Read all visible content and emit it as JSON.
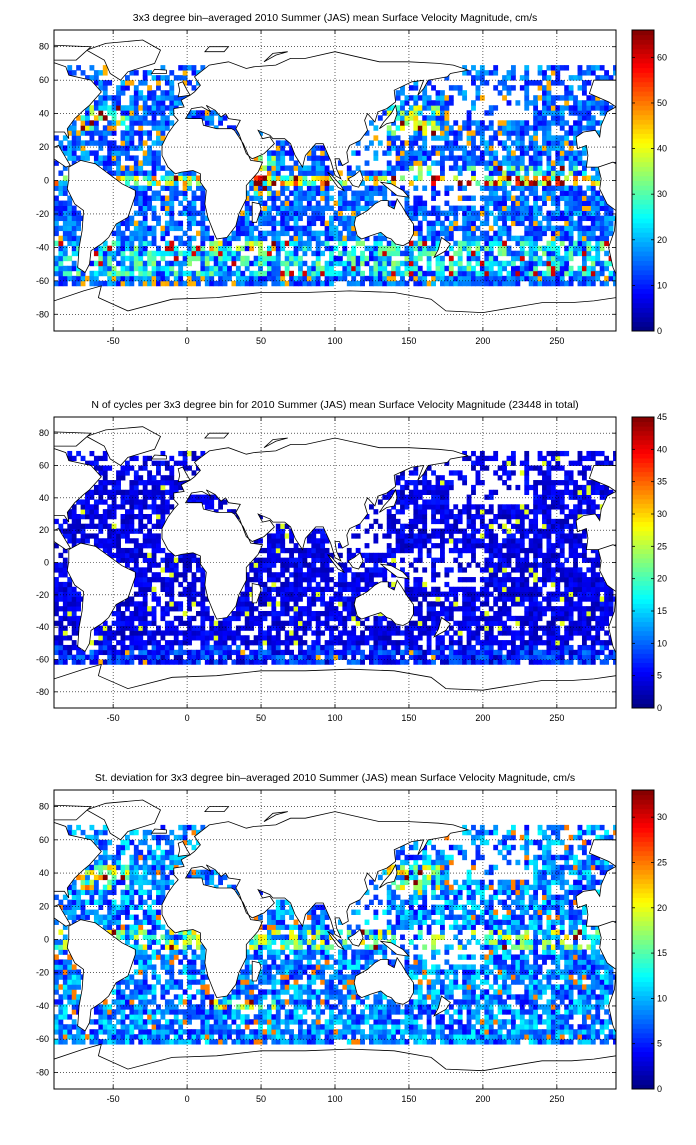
{
  "chart_data": [
    {
      "type": "heatmap",
      "title": "3x3 degree bin–averaged 2010 Summer (JAS) mean Surface Velocity Magnitude, cm/s",
      "xlabel": "",
      "ylabel": "",
      "xlim": [
        -90,
        290
      ],
      "ylim": [
        -90,
        90
      ],
      "xticks": [
        -50,
        0,
        50,
        100,
        150,
        200,
        250
      ],
      "yticks": [
        80,
        60,
        40,
        20,
        0,
        -20,
        -40,
        -60,
        -80
      ],
      "colorbar": {
        "range": [
          0,
          66
        ],
        "ticks": [
          0,
          10,
          20,
          30,
          40,
          50,
          60
        ]
      },
      "colormap": "jet",
      "grid": true,
      "field": "speed"
    },
    {
      "type": "heatmap",
      "title": "N of cycles per 3x3 degree bin for 2010 Summer (JAS) mean Surface Velocity Magnitude (23448 in total)",
      "xlabel": "",
      "ylabel": "",
      "xlim": [
        -90,
        290
      ],
      "ylim": [
        -90,
        90
      ],
      "xticks": [
        -50,
        0,
        50,
        100,
        150,
        200,
        250
      ],
      "yticks": [
        80,
        60,
        40,
        20,
        0,
        -20,
        -40,
        -60,
        -80
      ],
      "colorbar": {
        "range": [
          0,
          45
        ],
        "ticks": [
          0,
          5,
          10,
          15,
          20,
          25,
          30,
          35,
          40,
          45
        ]
      },
      "colormap": "jet",
      "grid": true,
      "field": "count"
    },
    {
      "type": "heatmap",
      "title": "St. deviation for 3x3 degree bin–averaged 2010 Summer (JAS) mean Surface Velocity Magnitude, cm/s",
      "xlabel": "",
      "ylabel": "",
      "xlim": [
        -90,
        290
      ],
      "ylim": [
        -90,
        90
      ],
      "xticks": [
        -50,
        0,
        50,
        100,
        150,
        200,
        250
      ],
      "yticks": [
        80,
        60,
        40,
        20,
        0,
        -20,
        -40,
        -60,
        -80
      ],
      "colorbar": {
        "range": [
          0,
          33
        ],
        "ticks": [
          0,
          5,
          10,
          15,
          20,
          25,
          30
        ]
      },
      "colormap": "jet",
      "grid": true,
      "field": "std"
    }
  ]
}
